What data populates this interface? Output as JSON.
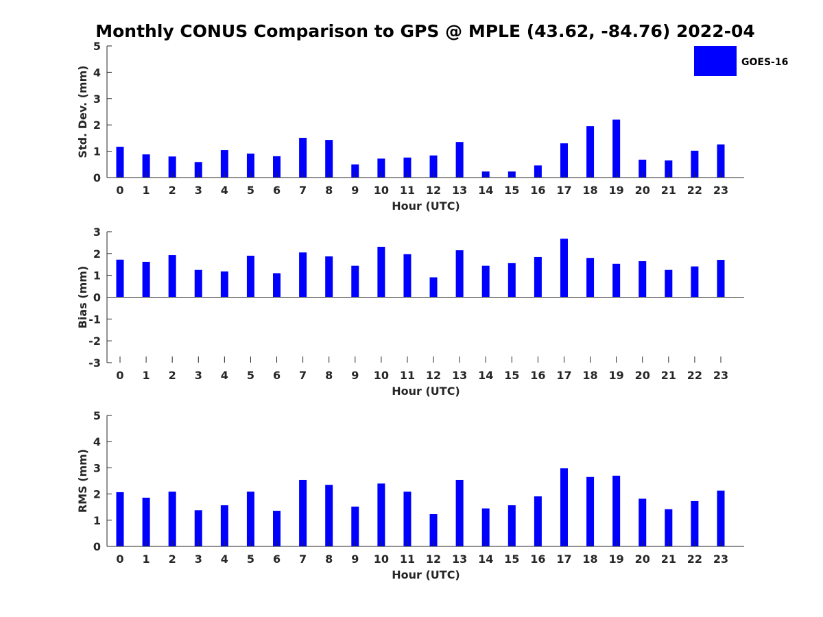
{
  "chart_data": {
    "title": "Monthly CONUS Comparison to GPS @ MPLE (43.62, -84.76) 2022-04",
    "legend": {
      "label": "GOES-16",
      "color": "#0000ff",
      "position": "top-right"
    },
    "panels": [
      {
        "type": "bar",
        "name": "stddev",
        "xlabel": "Hour (UTC)",
        "ylabel": "Std. Dev. (mm)",
        "ylim": [
          0,
          5
        ],
        "yticks": [
          "0",
          "1",
          "2",
          "3",
          "4",
          "5"
        ],
        "categories": [
          "0",
          "1",
          "2",
          "3",
          "4",
          "5",
          "6",
          "7",
          "8",
          "9",
          "10",
          "11",
          "12",
          "13",
          "14",
          "15",
          "16",
          "17",
          "18",
          "19",
          "20",
          "21",
          "22",
          "23"
        ],
        "series": [
          {
            "name": "GOES-16",
            "color": "#0000ff",
            "values": [
              1.17,
              0.88,
              0.8,
              0.59,
              1.04,
              0.91,
              0.81,
              1.51,
              1.43,
              0.5,
              0.72,
              0.76,
              0.84,
              1.35,
              0.23,
              0.23,
              0.46,
              1.3,
              1.95,
              2.2,
              0.68,
              0.65,
              1.02,
              1.26
            ]
          }
        ]
      },
      {
        "type": "bar",
        "name": "bias",
        "xlabel": "Hour (UTC)",
        "ylabel": "Bias (mm)",
        "ylim": [
          -3,
          3
        ],
        "yticks": [
          "-3",
          "-2",
          "-1",
          "0",
          "1",
          "2",
          "3"
        ],
        "categories": [
          "0",
          "1",
          "2",
          "3",
          "4",
          "5",
          "6",
          "7",
          "8",
          "9",
          "10",
          "11",
          "12",
          "13",
          "14",
          "15",
          "16",
          "17",
          "18",
          "19",
          "20",
          "21",
          "22",
          "23"
        ],
        "series": [
          {
            "name": "GOES-16",
            "color": "#0000ff",
            "values": [
              1.72,
              1.62,
              1.93,
              1.25,
              1.18,
              1.9,
              1.1,
              2.05,
              1.87,
              1.44,
              2.31,
              1.97,
              0.91,
              2.15,
              1.44,
              1.56,
              1.84,
              2.68,
              1.8,
              1.53,
              1.65,
              1.25,
              1.41,
              1.71
            ]
          }
        ]
      },
      {
        "type": "bar",
        "name": "rms",
        "xlabel": "Hour (UTC)",
        "ylabel": "RMS (mm)",
        "ylim": [
          0,
          5
        ],
        "yticks": [
          "0",
          "1",
          "2",
          "3",
          "4",
          "5"
        ],
        "categories": [
          "0",
          "1",
          "2",
          "3",
          "4",
          "5",
          "6",
          "7",
          "8",
          "9",
          "10",
          "11",
          "12",
          "13",
          "14",
          "15",
          "16",
          "17",
          "18",
          "19",
          "20",
          "21",
          "22",
          "23"
        ],
        "series": [
          {
            "name": "GOES-16",
            "color": "#0000ff",
            "values": [
              2.07,
              1.86,
              2.09,
              1.38,
              1.57,
              2.09,
              1.36,
              2.54,
              2.35,
              1.52,
              2.4,
              2.09,
              1.23,
              2.54,
              1.45,
              1.57,
              1.91,
              2.98,
              2.65,
              2.7,
              1.82,
              1.42,
              1.73,
              2.13
            ]
          }
        ]
      }
    ]
  }
}
